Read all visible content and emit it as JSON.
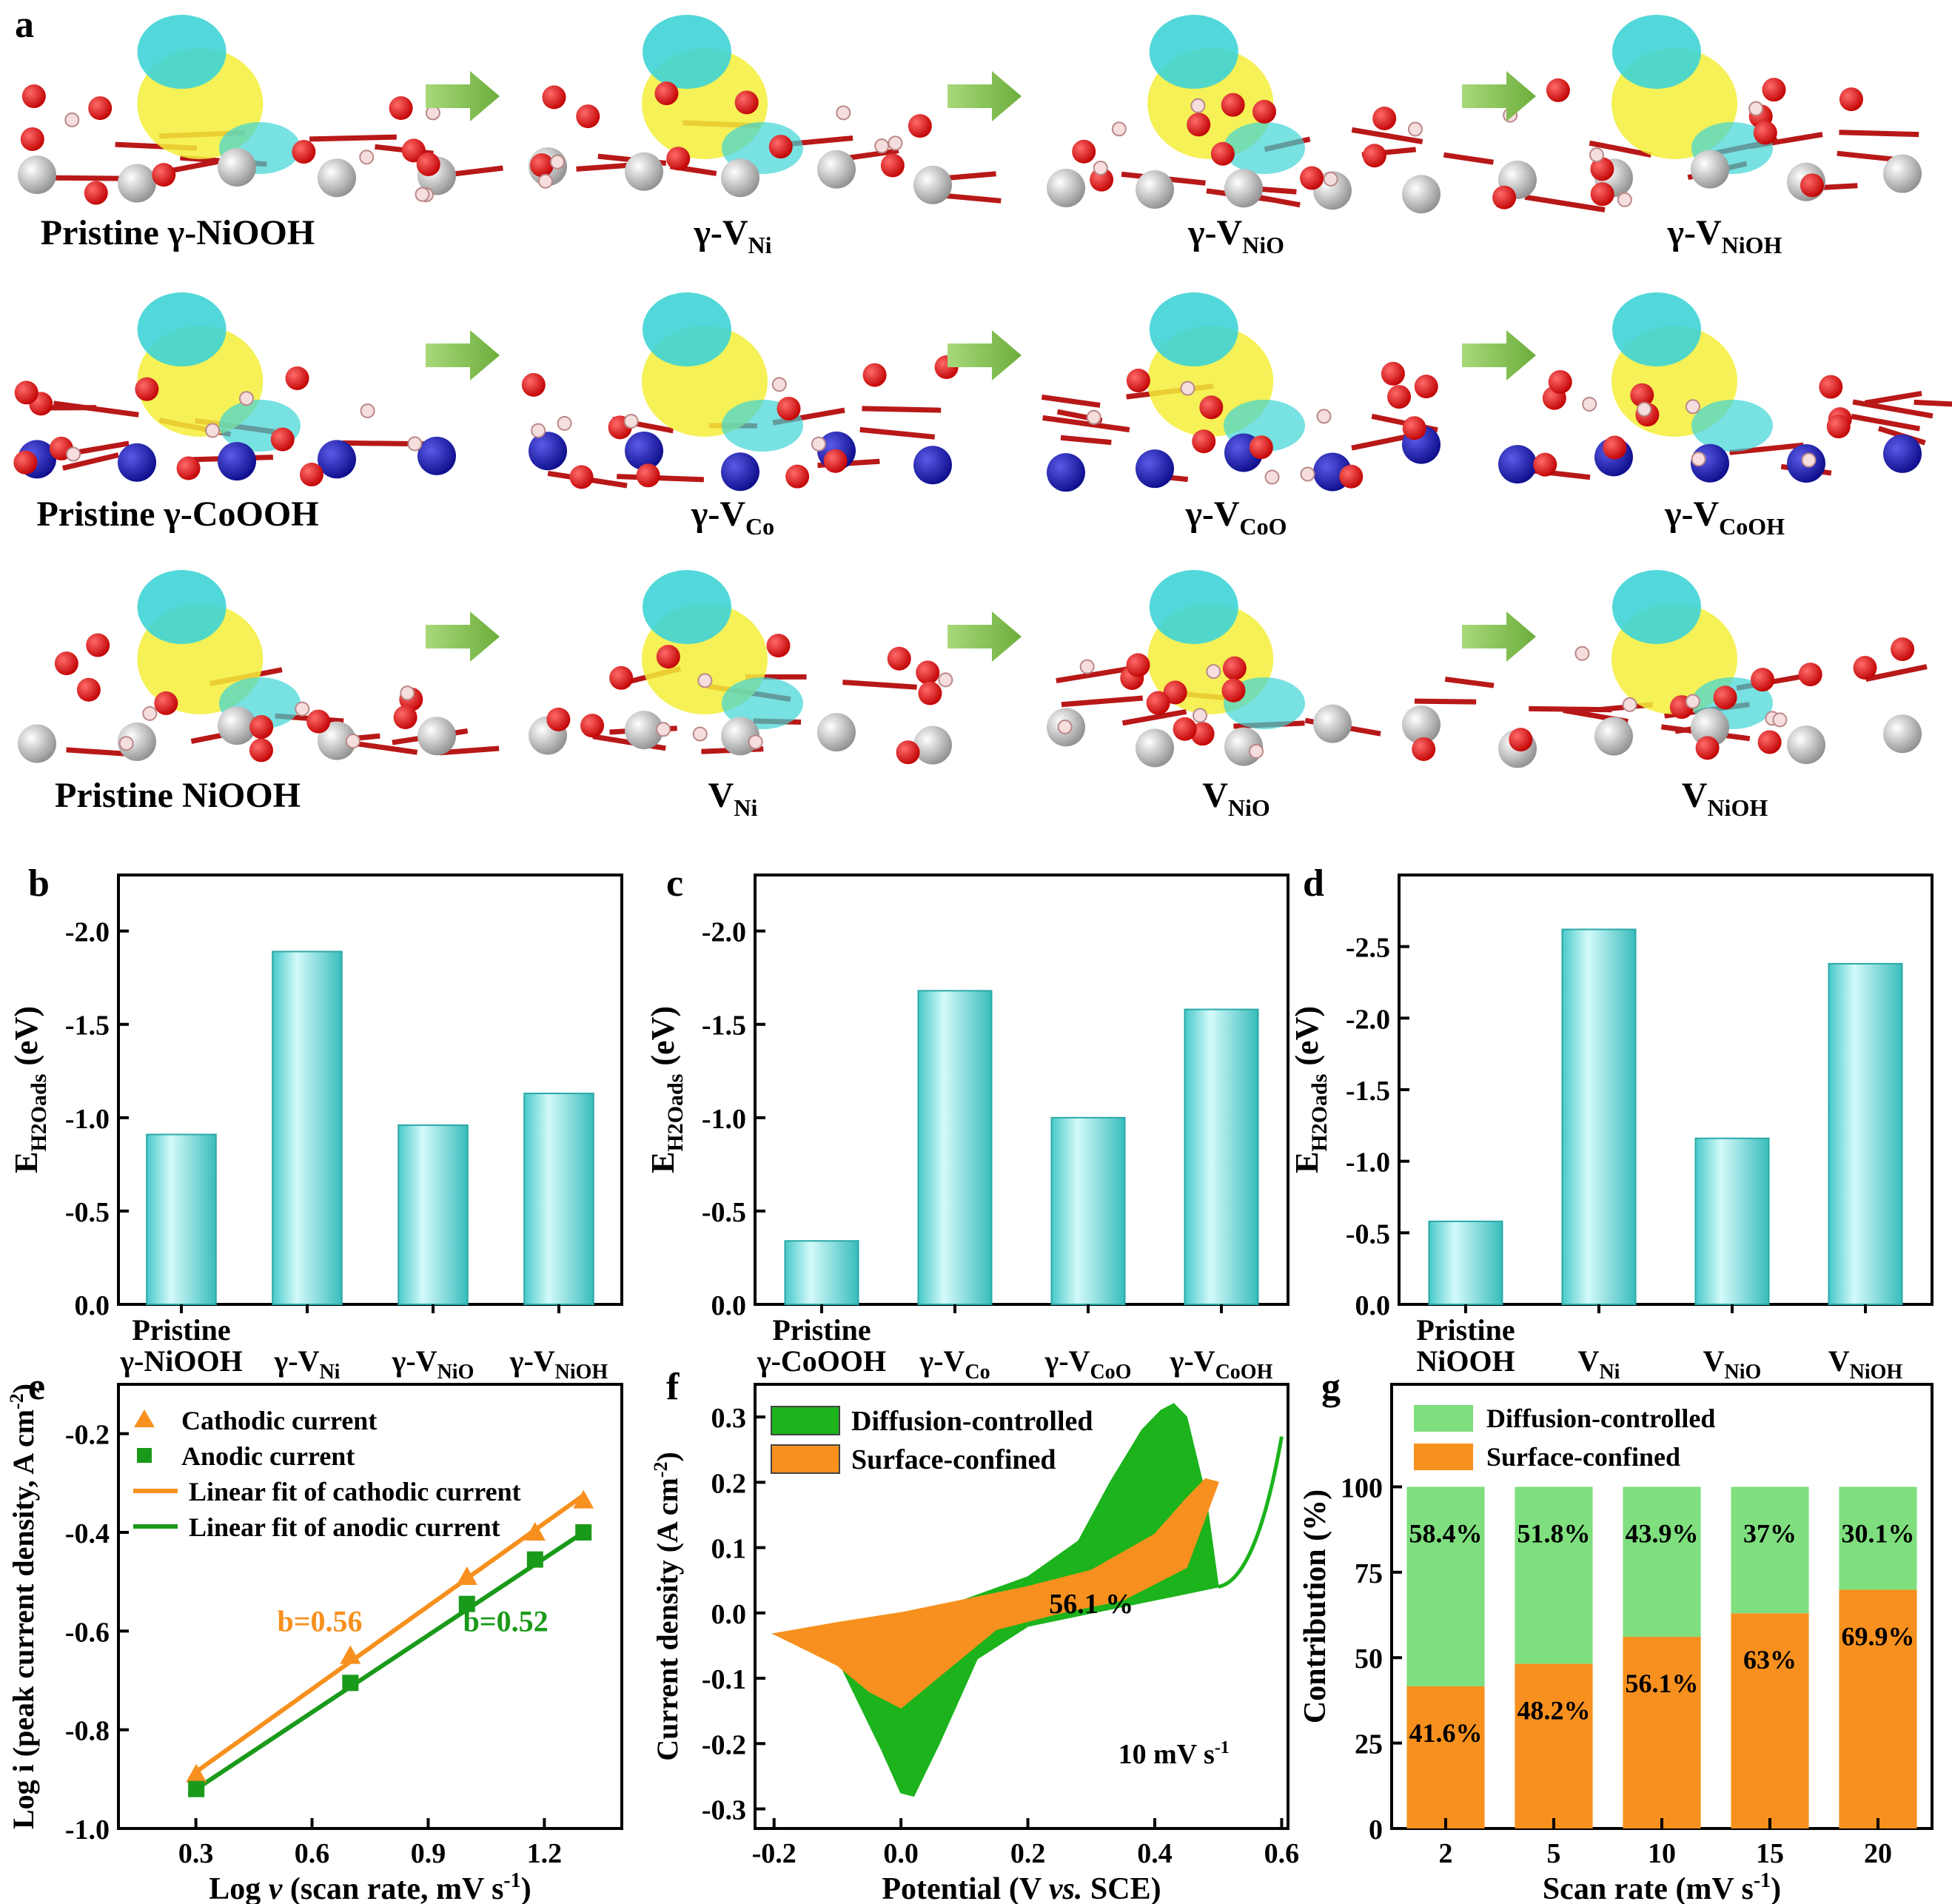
{
  "panel_letters": [
    "a",
    "b",
    "c",
    "d",
    "e",
    "f",
    "g"
  ],
  "panel_a": {
    "rows": [
      {
        "items": [
          {
            "main": "Pristine γ-NiOOH",
            "sub": ""
          },
          {
            "main": "γ-V",
            "sub": "Ni"
          },
          {
            "main": "γ-V",
            "sub": "NiO"
          },
          {
            "main": "γ-V",
            "sub": "NiOH"
          }
        ]
      },
      {
        "items": [
          {
            "main": "Pristine γ-CoOOH",
            "sub": ""
          },
          {
            "main": "γ-V",
            "sub": "Co"
          },
          {
            "main": "γ-V",
            "sub": "CoO"
          },
          {
            "main": "γ-V",
            "sub": "CoOH"
          }
        ]
      },
      {
        "items": [
          {
            "main": "Pristine NiOOH",
            "sub": ""
          },
          {
            "main": "V",
            "sub": "Ni"
          },
          {
            "main": "V",
            "sub": "NiO"
          },
          {
            "main": "V",
            "sub": "NiOH"
          }
        ]
      }
    ]
  },
  "chart_data": [
    {
      "panel": "b",
      "type": "bar",
      "ylabel": {
        "main": "E",
        "sub": "H2Oads",
        "unit": "(eV)"
      },
      "yticks": [
        "0.0",
        "-0.5",
        "-1.0",
        "-1.5",
        "-2.0"
      ],
      "ylim": [
        0,
        -2.3
      ],
      "categories": [
        {
          "l1": "Pristine",
          "l2": "γ-NiOOH",
          "sub": ""
        },
        {
          "l1": "",
          "l2": "γ-V",
          "sub": "Ni"
        },
        {
          "l1": "",
          "l2": "γ-V",
          "sub": "NiO"
        },
        {
          "l1": "",
          "l2": "γ-V",
          "sub": "NiOH"
        }
      ],
      "values": [
        -0.91,
        -1.89,
        -0.96,
        -1.13
      ],
      "bar_color": "#5ed3d3"
    },
    {
      "panel": "c",
      "type": "bar",
      "ylabel": {
        "main": "E",
        "sub": "H2Oads",
        "unit": "(eV)"
      },
      "yticks": [
        "0.0",
        "-0.5",
        "-1.0",
        "-1.5",
        "-2.0"
      ],
      "ylim": [
        0,
        -2.3
      ],
      "categories": [
        {
          "l1": "Pristine",
          "l2": "γ-CoOOH",
          "sub": ""
        },
        {
          "l1": "",
          "l2": "γ-V",
          "sub": "Co"
        },
        {
          "l1": "",
          "l2": "γ-V",
          "sub": "CoO"
        },
        {
          "l1": "",
          "l2": "γ-V",
          "sub": "CoOH"
        }
      ],
      "values": [
        -0.34,
        -1.68,
        -1.0,
        -1.58
      ],
      "bar_color": "#5ed3d3"
    },
    {
      "panel": "d",
      "type": "bar",
      "ylabel": {
        "main": "E",
        "sub": "H2Oads",
        "unit": "(eV)"
      },
      "yticks": [
        "0.0",
        "-0.5",
        "-1.0",
        "-1.5",
        "-2.0",
        "-2.5"
      ],
      "ylim": [
        0,
        -3.0
      ],
      "categories": [
        {
          "l1": "Pristine",
          "l2": "NiOOH",
          "sub": ""
        },
        {
          "l1": "",
          "l2": "V",
          "sub": "Ni"
        },
        {
          "l1": "",
          "l2": "V",
          "sub": "NiO"
        },
        {
          "l1": "",
          "l2": "V",
          "sub": "NiOH"
        }
      ],
      "values": [
        -0.58,
        -2.62,
        -1.16,
        -2.38
      ],
      "bar_color": "#5ed3d3"
    },
    {
      "panel": "e",
      "type": "scatter",
      "xlabel": {
        "pre": "Log ",
        "italic": "v",
        "post": " (scan rate, mV s",
        "sup": "-1",
        "end": ")"
      },
      "ylabel": {
        "text": "Log i (peak current density, A cm",
        "sup": "-2",
        "end": ")"
      },
      "xticks": [
        "0.3",
        "0.6",
        "0.9",
        "1.2"
      ],
      "yticks": [
        "-1.0",
        "-0.8",
        "-0.6",
        "-0.4",
        "-0.2"
      ],
      "xlim": [
        0.1,
        1.4
      ],
      "ylim": [
        -1.0,
        -0.1
      ],
      "series": [
        {
          "name": "Cathodic current",
          "marker": "triangle",
          "color": "#f7901e",
          "x": [
            0.301,
            0.699,
            1.0,
            1.176,
            1.301
          ],
          "y": [
            -0.89,
            -0.65,
            -0.49,
            -0.4,
            -0.335
          ]
        },
        {
          "name": "Anodic current",
          "marker": "square",
          "color": "#1a9a1a",
          "x": [
            0.301,
            0.699,
            1.0,
            1.176,
            1.301
          ],
          "y": [
            -0.92,
            -0.705,
            -0.545,
            -0.455,
            -0.4
          ]
        }
      ],
      "fits": [
        {
          "name": "Linear fit of cathodic current",
          "color": "#f7901e",
          "x": [
            0.301,
            1.301
          ],
          "y": [
            -0.885,
            -0.325
          ]
        },
        {
          "name": "Linear fit of anodic current",
          "color": "#1a9a1a",
          "x": [
            0.301,
            1.301
          ],
          "y": [
            -0.92,
            -0.4
          ]
        }
      ],
      "annotations": [
        {
          "text": "b=0.56",
          "color": "#f7901e"
        },
        {
          "text": "b=0.52",
          "color": "#1a9a1a"
        }
      ]
    },
    {
      "panel": "f",
      "type": "area",
      "xlabel": {
        "pre": "Potential (V ",
        "italic": "vs.",
        "post": " SCE)"
      },
      "ylabel": {
        "text": "Current density (A cm",
        "sup": "-2",
        "end": ")"
      },
      "xticks": [
        "-0.2",
        "0.0",
        "0.2",
        "0.4",
        "0.6"
      ],
      "yticks": [
        "-0.3",
        "-0.2",
        "-0.1",
        "0.0",
        "0.1",
        "0.2",
        "0.3"
      ],
      "xlim": [
        -0.23,
        0.61
      ],
      "ylim": [
        -0.33,
        0.35
      ],
      "series": [
        {
          "name": "Diffusion-controlled",
          "color": "#1cb31c",
          "upper_x": [
            -0.2,
            -0.1,
            0.0,
            0.1,
            0.2,
            0.28,
            0.33,
            0.38,
            0.41,
            0.43,
            0.45,
            0.48,
            0.5
          ],
          "upper_y": [
            -0.032,
            -0.018,
            -0.005,
            0.02,
            0.055,
            0.11,
            0.2,
            0.28,
            0.31,
            0.32,
            0.3,
            0.18,
            0.04
          ],
          "lower_x": [
            0.5,
            0.45,
            0.4,
            0.3,
            0.2,
            0.12,
            0.06,
            0.02,
            0.0,
            -0.03,
            -0.1,
            -0.2
          ],
          "lower_y": [
            0.04,
            0.03,
            0.02,
            0.0,
            -0.02,
            -0.07,
            -0.2,
            -0.28,
            -0.275,
            -0.21,
            -0.07,
            -0.032
          ]
        },
        {
          "name": "Surface-confined",
          "color": "#f7901e",
          "upper_x": [
            -0.2,
            -0.1,
            0.0,
            0.1,
            0.2,
            0.3,
            0.4,
            0.45,
            0.48,
            0.5
          ],
          "upper_y": [
            -0.032,
            -0.015,
            0.0,
            0.02,
            0.04,
            0.065,
            0.12,
            0.175,
            0.205,
            0.2
          ],
          "lower_x": [
            0.5,
            0.45,
            0.35,
            0.25,
            0.15,
            0.05,
            0.0,
            -0.05,
            -0.1,
            -0.2
          ],
          "lower_y": [
            0.2,
            0.07,
            0.02,
            0.0,
            -0.025,
            -0.105,
            -0.145,
            -0.12,
            -0.08,
            -0.032
          ]
        }
      ],
      "annotations": [
        "56.1 %",
        "10 mV s"
      ],
      "annotation_sup": "-1"
    },
    {
      "panel": "g",
      "type": "bar",
      "stacked": true,
      "xlabel": {
        "text": "Scan rate (mV s",
        "sup": "-1",
        "end": ")"
      },
      "ylabel": {
        "text": "Contribution (%)"
      },
      "categories": [
        "2",
        "5",
        "10",
        "15",
        "20"
      ],
      "yticks": [
        "0",
        "25",
        "50",
        "75",
        "100"
      ],
      "ylim": [
        0,
        130
      ],
      "series": [
        {
          "name": "Surface-confined",
          "color": "#f7901e",
          "values": [
            41.6,
            48.2,
            56.1,
            63,
            69.9
          ],
          "labels": [
            "41.6%",
            "48.2%",
            "56.1%",
            "63%",
            "69.9%"
          ]
        },
        {
          "name": "Diffusion-controlled",
          "color": "#7fdf7f",
          "values": [
            58.4,
            51.8,
            43.9,
            37,
            30.1
          ],
          "labels": [
            "58.4%",
            "51.8%",
            "43.9%",
            "37%",
            "30.1%"
          ]
        }
      ],
      "legend": [
        "Diffusion-controlled",
        "Surface-confined"
      ]
    }
  ]
}
